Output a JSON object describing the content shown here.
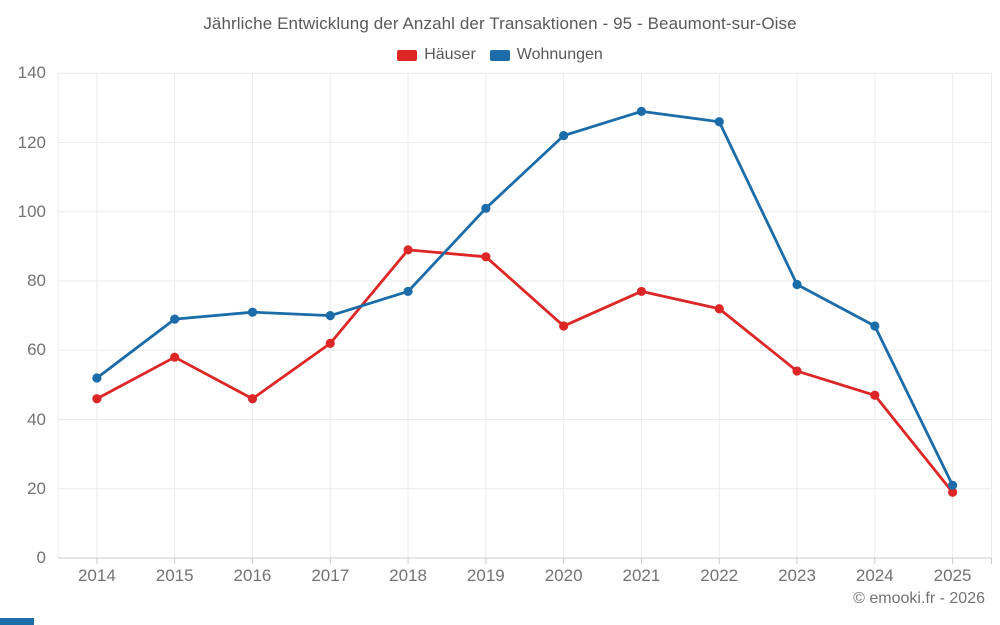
{
  "chart_data": {
    "type": "line",
    "title": "Jährliche Entwicklung der Anzahl der Transaktionen - 95 - Beaumont-sur-Oise",
    "categories": [
      "2014",
      "2015",
      "2016",
      "2017",
      "2018",
      "2019",
      "2020",
      "2021",
      "2022",
      "2023",
      "2024",
      "2025"
    ],
    "series": [
      {
        "name": "Häuser",
        "color": "#dd2727",
        "values": [
          46,
          58,
          46,
          62,
          89,
          87,
          67,
          77,
          72,
          54,
          47,
          19
        ]
      },
      {
        "name": "Wohnungen",
        "color": "#1b6ca8",
        "values": [
          52,
          69,
          71,
          70,
          77,
          101,
          122,
          129,
          126,
          79,
          67,
          21
        ]
      }
    ],
    "xlabel": "",
    "ylabel": "",
    "ylim": [
      0,
      140
    ],
    "yticks": [
      0,
      20,
      40,
      60,
      80,
      100,
      120,
      140
    ],
    "grid": "on",
    "legend_position": "top"
  },
  "footer": {
    "text": "© emooki.fr - 2026"
  },
  "colors": {
    "background": "#ffffff",
    "title_text": "#595959",
    "axis_text": "#737373",
    "grid_line": "#ebebeb",
    "axis_line": "#cccccc",
    "brand_bar": "#1b6ca8"
  }
}
